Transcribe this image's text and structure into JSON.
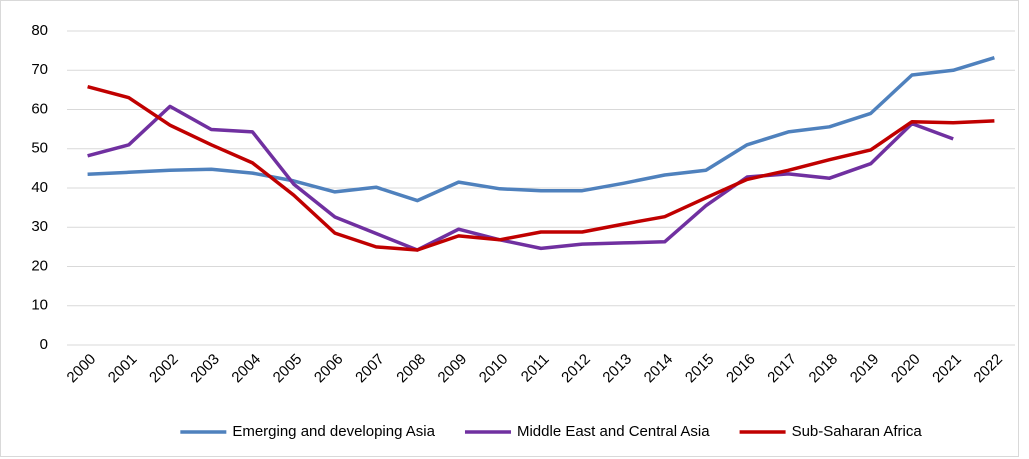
{
  "chart_data": {
    "type": "line",
    "categories": [
      "2000",
      "2001",
      "2002",
      "2003",
      "2004",
      "2005",
      "2006",
      "2007",
      "2008",
      "2009",
      "2010",
      "2011",
      "2012",
      "2013",
      "2014",
      "2015",
      "2016",
      "2017",
      "2018",
      "2019",
      "2020",
      "2021",
      "2022"
    ],
    "series": [
      {
        "name": "Emerging and developing Asia",
        "color": "#4f81bd",
        "values": [
          43.5,
          44,
          44.5,
          44.8,
          43.8,
          41.8,
          39,
          40.2,
          36.8,
          41.5,
          39.8,
          39.3,
          39.3,
          41.2,
          43.3,
          44.5,
          51,
          54.3,
          55.6,
          59,
          68.8,
          70,
          73.2
        ]
      },
      {
        "name": "Middle East and Central Asia",
        "color": "#7030a0",
        "values": [
          48.2,
          51,
          60.8,
          54.9,
          54.3,
          41,
          32.6,
          28.4,
          24.2,
          29.5,
          26.8,
          24.6,
          25.7,
          26,
          26.3,
          35.5,
          42.8,
          43.6,
          42.5,
          46.2,
          56.4,
          52.5,
          null
        ]
      },
      {
        "name": "Sub-Saharan Africa",
        "color": "#c00000",
        "values": [
          65.8,
          63,
          56,
          51,
          46.4,
          38.2,
          28.5,
          25,
          24.2,
          27.8,
          26.8,
          28.8,
          28.8,
          30.8,
          32.7,
          37.5,
          42.2,
          44.5,
          47.2,
          49.7,
          56.9,
          56.6,
          57.1
        ]
      }
    ],
    "ylim": [
      0,
      80
    ],
    "yticks": [
      0,
      10,
      20,
      30,
      40,
      50,
      60,
      70,
      80
    ],
    "grid": true,
    "legend": "bottom"
  }
}
